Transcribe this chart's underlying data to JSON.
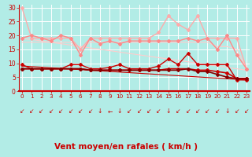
{
  "background_color": "#b2ece6",
  "grid_color": "#aadddd",
  "xlabel": "Vent moyen/en rafales ( km/h )",
  "xlabel_color": "#cc0000",
  "xlabel_fontsize": 7.5,
  "tick_color": "#cc0000",
  "tick_fontsize": 5.5,
  "ylim": [
    0,
    31
  ],
  "xlim": [
    -0.3,
    23.3
  ],
  "yticks": [
    0,
    5,
    10,
    15,
    20,
    25,
    30
  ],
  "xticks": [
    0,
    1,
    2,
    3,
    4,
    5,
    6,
    7,
    8,
    9,
    10,
    11,
    12,
    13,
    14,
    15,
    16,
    17,
    18,
    19,
    20,
    21,
    22,
    23
  ],
  "series": [
    {
      "label": "rafales_light",
      "x": [
        0,
        1,
        2,
        3,
        4,
        5,
        6,
        7,
        8,
        9,
        10,
        11,
        12,
        13,
        14,
        15,
        16,
        17,
        18,
        19,
        20,
        21,
        22,
        23
      ],
      "y": [
        30,
        19,
        19,
        19,
        19,
        19,
        15,
        19,
        19,
        19,
        19,
        19,
        19,
        19,
        21,
        27,
        24,
        22,
        27,
        19,
        19,
        19,
        19,
        8
      ],
      "color": "#ffaaaa",
      "lw": 1.0,
      "marker": "D",
      "ms": 2.0,
      "zorder": 3
    },
    {
      "label": "moyen_light",
      "x": [
        0,
        1,
        2,
        3,
        4,
        5,
        6,
        7,
        8,
        9,
        10,
        11,
        12,
        13,
        14,
        15,
        16,
        17,
        18,
        19,
        20,
        21,
        22,
        23
      ],
      "y": [
        19,
        20,
        19,
        18,
        20,
        19,
        13,
        19,
        17,
        18,
        17,
        18,
        18,
        18,
        18,
        18,
        18,
        19,
        18,
        19,
        15,
        20,
        13,
        8
      ],
      "color": "#ff8888",
      "lw": 1.0,
      "marker": "D",
      "ms": 2.0,
      "zorder": 3
    },
    {
      "label": "trend_light1",
      "x": [
        0,
        1,
        2,
        3,
        4,
        5,
        6,
        7,
        8,
        9,
        10,
        11,
        12,
        13,
        14,
        15,
        16,
        17,
        18,
        19,
        20,
        21,
        22,
        23
      ],
      "y": [
        17.5,
        17.5,
        17.5,
        17.5,
        17.5,
        17.5,
        15.5,
        17.5,
        17.5,
        17.5,
        17.5,
        17.5,
        17.5,
        17.5,
        17.5,
        17.5,
        17.5,
        17.5,
        17.5,
        17.5,
        16.0,
        16.0,
        15.0,
        8
      ],
      "color": "#ffcccc",
      "lw": 0.8,
      "marker": null,
      "ms": 0,
      "zorder": 2
    },
    {
      "label": "trend_diag_light",
      "x": [
        0,
        23
      ],
      "y": [
        19.0,
        7.5
      ],
      "color": "#ffcccc",
      "lw": 0.8,
      "marker": null,
      "ms": 0,
      "linestyle": "-",
      "zorder": 2
    },
    {
      "label": "rafales_dark",
      "x": [
        0,
        1,
        2,
        3,
        4,
        5,
        6,
        7,
        8,
        9,
        10,
        11,
        12,
        13,
        14,
        15,
        16,
        17,
        18,
        19,
        20,
        21,
        22,
        23
      ],
      "y": [
        9.5,
        8,
        8,
        8,
        8,
        9.5,
        9.5,
        8,
        8,
        8.5,
        9.5,
        8,
        8,
        8,
        9,
        11.5,
        9.5,
        13.5,
        9.5,
        9.5,
        9.5,
        9.5,
        4,
        4
      ],
      "color": "#cc0000",
      "lw": 1.0,
      "marker": "D",
      "ms": 2.0,
      "zorder": 4
    },
    {
      "label": "moyen_dark1",
      "x": [
        0,
        1,
        2,
        3,
        4,
        5,
        6,
        7,
        8,
        9,
        10,
        11,
        12,
        13,
        14,
        15,
        16,
        17,
        18,
        19,
        20,
        21,
        22,
        23
      ],
      "y": [
        8,
        8,
        8,
        8,
        8,
        8,
        8,
        7.5,
        7.5,
        7.5,
        7.5,
        7.5,
        7.5,
        7.5,
        7.5,
        8,
        8,
        8,
        7.5,
        7.5,
        7,
        6.5,
        4.5,
        4.5
      ],
      "color": "#cc0000",
      "lw": 1.2,
      "marker": "D",
      "ms": 2.0,
      "zorder": 4
    },
    {
      "label": "moyen_dark2",
      "x": [
        0,
        1,
        2,
        3,
        4,
        5,
        6,
        7,
        8,
        9,
        10,
        11,
        12,
        13,
        14,
        15,
        16,
        17,
        18,
        19,
        20,
        21,
        22,
        23
      ],
      "y": [
        8,
        8,
        8,
        8,
        8,
        8,
        8,
        7.5,
        7.5,
        7.5,
        7.5,
        7.5,
        7.5,
        7.5,
        7.5,
        7.5,
        7.5,
        8,
        7,
        7,
        6,
        5,
        4.5,
        4.5
      ],
      "color": "#880000",
      "lw": 1.2,
      "marker": "D",
      "ms": 2.0,
      "zorder": 4
    },
    {
      "label": "trend_diag_dark",
      "x": [
        0,
        23
      ],
      "y": [
        9.0,
        4.0
      ],
      "color": "#cc0000",
      "lw": 0.8,
      "marker": null,
      "ms": 0,
      "linestyle": "-",
      "zorder": 2
    }
  ],
  "arrow_angles": [
    225,
    225,
    225,
    225,
    225,
    225,
    225,
    225,
    270,
    180,
    270,
    225,
    225,
    225,
    225,
    270,
    225,
    225,
    225,
    225,
    225,
    270,
    225,
    225
  ]
}
